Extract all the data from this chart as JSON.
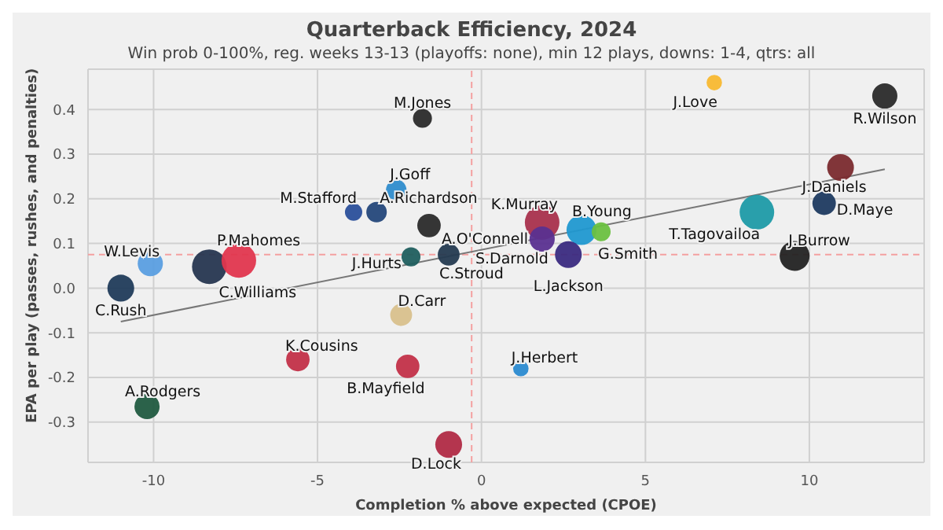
{
  "chart_data": {
    "type": "bubble",
    "title": "Quarterback Efficiency, 2024",
    "subtitle": "Win prob 0-100%, reg. weeks 13-13 (playoffs: none), min 12 plays, downs: 1-4, qtrs: all",
    "xlabel": "Completion % above expected (CPOE)",
    "ylabel": "EPA per play (passes, rushes, and penalties)",
    "xlim": [
      -12,
      13.5
    ],
    "xticks": [
      -10,
      -5,
      0,
      5,
      10
    ],
    "ylim": [
      -0.39,
      0.49
    ],
    "yticks": [
      {
        "value": -0.3,
        "label": "-0.3"
      },
      {
        "value": -0.2,
        "label": "-0.2"
      },
      {
        "value": -0.1,
        "label": "-0.1"
      },
      {
        "value": 0,
        "label": "0.0"
      },
      {
        "value": 0.1,
        "label": "0.1"
      },
      {
        "value": 0.2,
        "label": "0.2"
      },
      {
        "value": 0.3,
        "label": "0.3"
      },
      {
        "value": 0.4,
        "label": "0.4"
      }
    ],
    "grid": true,
    "legend": false,
    "ref_lines": [
      {
        "axis": "x",
        "value": -0.3,
        "color": "#f4a0a0",
        "line_style": "dashed"
      },
      {
        "axis": "y",
        "value": 0.075,
        "color": "#f4a0a0",
        "line_style": "dashed"
      }
    ],
    "series": [
      {
        "name": "M.Jones",
        "color": "#2a2a2a",
        "x": [
          -1.8
        ],
        "values": [
          0.38
        ],
        "sizes": [
          0.3
        ]
      },
      {
        "name": "J.Goff",
        "color": "#2e8ccc",
        "x": [
          -2.6
        ],
        "values": [
          0.22
        ],
        "sizes": [
          0.35
        ]
      },
      {
        "name": "M.Stafford",
        "color": "#2a4f9a",
        "x": [
          -3.9
        ],
        "values": [
          0.17
        ],
        "sizes": [
          0.25
        ]
      },
      {
        "name": "A.Richardson",
        "color": "#24477a",
        "x": [
          -3.2
        ],
        "values": [
          0.17
        ],
        "sizes": [
          0.35
        ]
      },
      {
        "name": "A.O'Connell",
        "color": "#2a2a2a",
        "x": [
          -1.6
        ],
        "values": [
          0.14
        ],
        "sizes": [
          0.46
        ]
      },
      {
        "name": "J.Hurts",
        "color": "#1f5e5e",
        "x": [
          -2.15
        ],
        "values": [
          0.07
        ],
        "sizes": [
          0.3
        ]
      },
      {
        "name": "C.Stroud",
        "color": "#243a50",
        "x": [
          -1.0
        ],
        "values": [
          0.075
        ],
        "sizes": [
          0.4
        ]
      },
      {
        "name": "W.Levis",
        "color": "#5a9ee0",
        "x": [
          -10.1
        ],
        "values": [
          0.055
        ],
        "sizes": [
          0.53
        ]
      },
      {
        "name": "C.Williams",
        "color": "#263650",
        "x": [
          -8.3
        ],
        "values": [
          0.048
        ],
        "sizes": [
          1
        ]
      },
      {
        "name": "P.Mahomes",
        "color": "#e0364e",
        "x": [
          -7.4
        ],
        "values": [
          0.062
        ],
        "sizes": [
          1
        ]
      },
      {
        "name": "C.Rush",
        "color": "#203b5a",
        "x": [
          -11.0
        ],
        "values": [
          0.0
        ],
        "sizes": [
          0.6
        ]
      },
      {
        "name": "D.Carr",
        "color": "#d8c08c",
        "x": [
          -2.45
        ],
        "values": [
          -0.06
        ],
        "sizes": [
          0.4
        ]
      },
      {
        "name": "K.Cousins",
        "color": "#c23048",
        "x": [
          -5.6
        ],
        "values": [
          -0.16
        ],
        "sizes": [
          0.46
        ]
      },
      {
        "name": "B.Mayfield",
        "color": "#c23048",
        "x": [
          -2.25
        ],
        "values": [
          -0.175
        ],
        "sizes": [
          0.46
        ]
      },
      {
        "name": "A.Rodgers",
        "color": "#205a40",
        "x": [
          -10.2
        ],
        "values": [
          -0.265
        ],
        "sizes": [
          0.53
        ]
      },
      {
        "name": "D.Lock",
        "color": "#b02a44",
        "x": [
          -1.0
        ],
        "values": [
          -0.35
        ],
        "sizes": [
          0.6
        ]
      },
      {
        "name": "J.Herbert",
        "color": "#2a8ad0",
        "x": [
          1.2
        ],
        "values": [
          -0.18
        ],
        "sizes": [
          0.2
        ]
      },
      {
        "name": "J.Love",
        "color": "#f8b830",
        "x": [
          7.1
        ],
        "values": [
          0.46
        ],
        "sizes": [
          0.2
        ]
      },
      {
        "name": "R.Wilson",
        "color": "#2a2a2a",
        "x": [
          12.3
        ],
        "values": [
          0.43
        ],
        "sizes": [
          0.53
        ]
      },
      {
        "name": "J.Daniels",
        "color": "#7a2a2e",
        "x": [
          10.95
        ],
        "values": [
          0.27
        ],
        "sizes": [
          0.6
        ]
      },
      {
        "name": "D.Maye",
        "color": "#1e3a60",
        "x": [
          10.45
        ],
        "values": [
          0.19
        ],
        "sizes": [
          0.46
        ]
      },
      {
        "name": "T.Tagovailoa",
        "color": "#1e9aa6",
        "x": [
          8.4
        ],
        "values": [
          0.17
        ],
        "sizes": [
          1
        ]
      },
      {
        "name": "J.Burrow",
        "color": "#222222",
        "x": [
          9.55
        ],
        "values": [
          0.072
        ],
        "sizes": [
          0.75
        ]
      },
      {
        "name": "K.Murray",
        "color": "#a8304c",
        "x": [
          1.85
        ],
        "values": [
          0.147
        ],
        "sizes": [
          1
        ]
      },
      {
        "name": "B.Young",
        "color": "#2098d0",
        "x": [
          3.05
        ],
        "values": [
          0.13
        ],
        "sizes": [
          0.75
        ]
      },
      {
        "name": "G.Smith",
        "color": "#6ac040",
        "x": [
          3.65
        ],
        "values": [
          0.126
        ],
        "sizes": [
          0.3
        ]
      },
      {
        "name": "S.Darnold",
        "color": "#5a3090",
        "x": [
          1.85
        ],
        "values": [
          0.11
        ],
        "sizes": [
          0.53
        ]
      },
      {
        "name": "L.Jackson",
        "color": "#3a2a80",
        "x": [
          2.65
        ],
        "values": [
          0.075
        ],
        "sizes": [
          0.6
        ]
      },
      {
        "type": "line",
        "color": "#777777",
        "x": [
          -11.0,
          12.3
        ],
        "values": [
          -0.075,
          0.266
        ]
      }
    ]
  }
}
